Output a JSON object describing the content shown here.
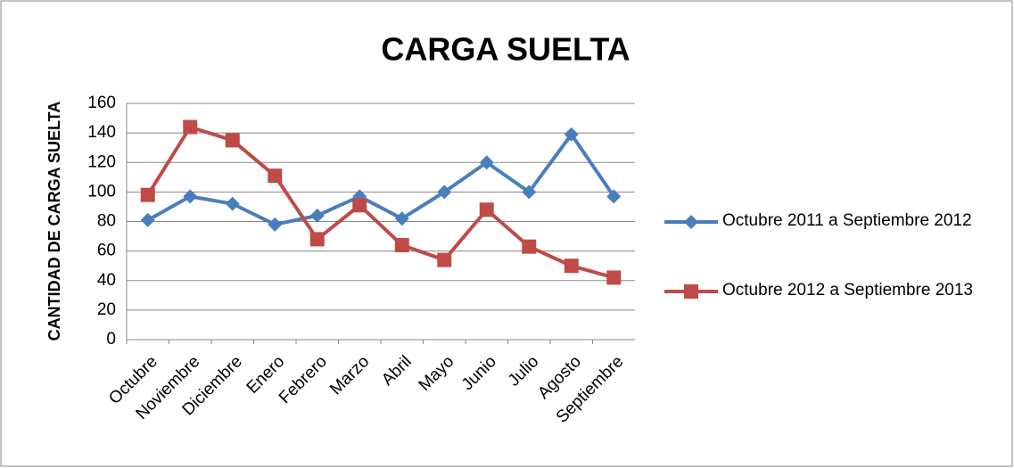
{
  "chart_data": {
    "type": "line",
    "title": "CARGA SUELTA",
    "y_label": "CANTIDAD DE CARGA SUELTA",
    "categories": [
      "Octubre",
      "Noviembre",
      "Diciembre",
      "Enero",
      "Febrero",
      "Marzo",
      "Abril",
      "Mayo",
      "Junio",
      "Julio",
      "Agosto",
      "Septiembre"
    ],
    "series": [
      {
        "name": "Octubre 2011 a Septiembre 2012",
        "color": "#4a7ebb",
        "marker": "diamond",
        "values": [
          81,
          97,
          92,
          78,
          84,
          97,
          82,
          100,
          120,
          100,
          139,
          97
        ]
      },
      {
        "name": "Octubre 2012 a Septiembre 2013",
        "color": "#be4b48",
        "marker": "square",
        "values": [
          98,
          144,
          135,
          111,
          68,
          91,
          64,
          54,
          88,
          63,
          50,
          42
        ]
      }
    ],
    "ylim": [
      0,
      160
    ],
    "yticks": [
      0,
      20,
      40,
      60,
      80,
      100,
      120,
      140,
      160
    ],
    "grid": true,
    "legend": "right"
  }
}
